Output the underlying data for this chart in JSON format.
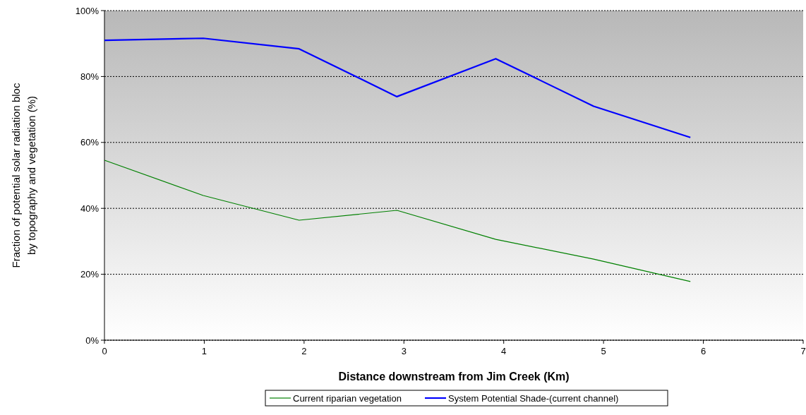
{
  "chart_data": {
    "type": "line",
    "xlabel": "Distance downstream from Jim Creek (Km)",
    "ylabel": "Fraction of potential solar radiation bloc\nby topography and vegetation (%)",
    "x": [
      0,
      0.99,
      1.95,
      2.93,
      3.92,
      4.9,
      5.87
    ],
    "series": [
      {
        "name": "Current riparian vegetation",
        "color": "#008000",
        "values": [
          54.6,
          43.9,
          36.4,
          39.4,
          30.6,
          24.6,
          17.8
        ]
      },
      {
        "name": "System Potential Shade-(current channel)",
        "color": "#0000ff",
        "values": [
          91,
          91.6,
          88.4,
          73.9,
          85.4,
          71,
          61.5
        ]
      }
    ],
    "xlim": [
      0,
      7
    ],
    "xticks": [
      0,
      1,
      2,
      3,
      4,
      5,
      6,
      7
    ],
    "ylim": [
      0,
      100
    ],
    "yticks": [
      {
        "value": 0,
        "label": "0%"
      },
      {
        "value": 20,
        "label": "20%"
      },
      {
        "value": 40,
        "label": "40%"
      },
      {
        "value": 60,
        "label": "60%"
      },
      {
        "value": 80,
        "label": "80%"
      },
      {
        "value": 100,
        "label": "100%"
      }
    ],
    "grid": "y",
    "legend": "bottom",
    "marker": "none",
    "line_style": "solid"
  }
}
